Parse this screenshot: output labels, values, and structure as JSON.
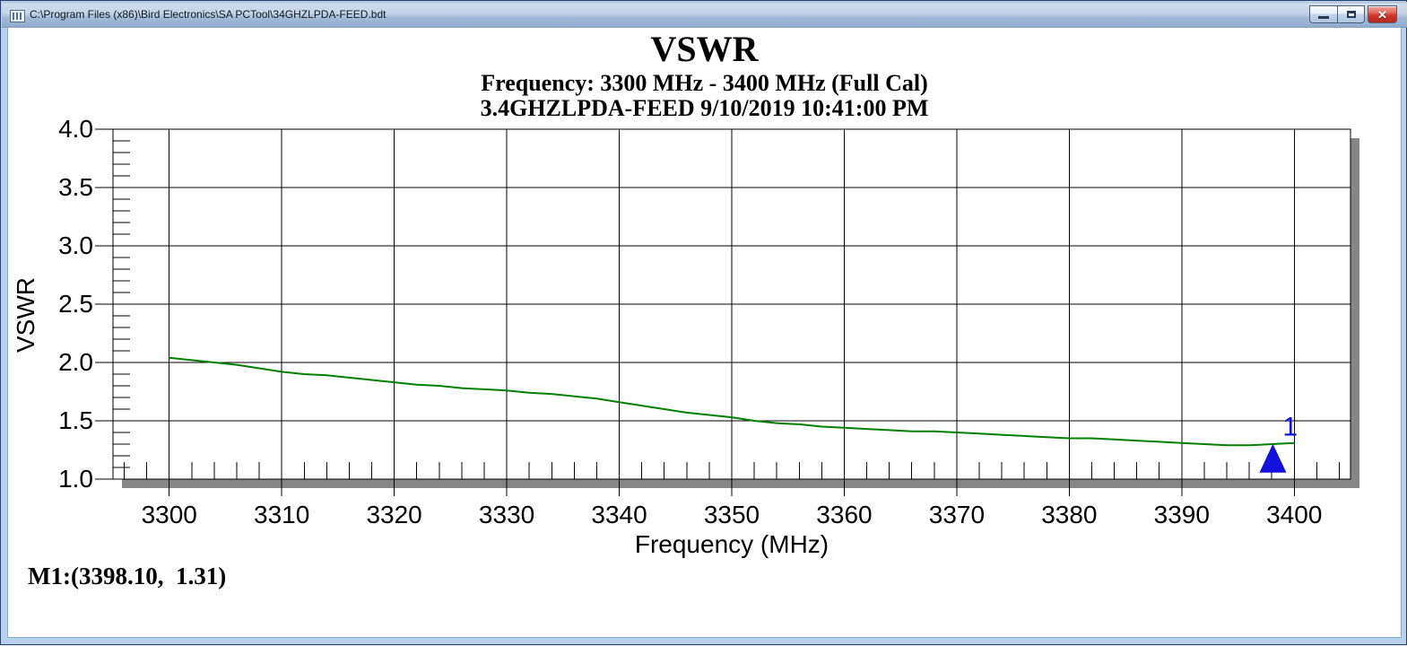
{
  "window": {
    "title": "C:\\Program Files (x86)\\Bird Electronics\\SA PCTool\\34GHZLPDA-FEED.bdt",
    "icons": {
      "document_icon": "mini-chart-grid",
      "minimize_icon": "—",
      "restore_icon": "▢",
      "close_icon": "✕"
    }
  },
  "chart": {
    "title": "VSWR",
    "subtitle1": "Frequency: 3300 MHz - 3400 MHz (Full Cal)",
    "subtitle2": "3.4GHZLPDA-FEED 9/10/2019 10:41:00 PM",
    "xlabel": "Frequency (MHz)",
    "ylabel": "VSWR",
    "marker_readout": "M1:(3398.10,  1.31)"
  },
  "chart_data": {
    "type": "line",
    "title": "VSWR",
    "xlabel": "Frequency (MHz)",
    "ylabel": "VSWR",
    "xlim": [
      3295,
      3405
    ],
    "ylim": [
      1.0,
      4.0
    ],
    "x_major_ticks": [
      3300,
      3310,
      3320,
      3330,
      3340,
      3350,
      3360,
      3370,
      3380,
      3390,
      3400
    ],
    "y_major_ticks": [
      1.0,
      1.5,
      2.0,
      2.5,
      3.0,
      3.5,
      4.0
    ],
    "x_minor_step": 2,
    "y_minor_step": 0.1,
    "grid": true,
    "series": [
      {
        "name": "VSWR trace",
        "color": "#008000",
        "points": [
          [
            3300,
            2.04
          ],
          [
            3302,
            2.02
          ],
          [
            3304,
            2.0
          ],
          [
            3306,
            1.98
          ],
          [
            3308,
            1.95
          ],
          [
            3310,
            1.92
          ],
          [
            3312,
            1.9
          ],
          [
            3314,
            1.89
          ],
          [
            3316,
            1.87
          ],
          [
            3318,
            1.85
          ],
          [
            3320,
            1.83
          ],
          [
            3322,
            1.81
          ],
          [
            3324,
            1.8
          ],
          [
            3326,
            1.78
          ],
          [
            3328,
            1.77
          ],
          [
            3330,
            1.76
          ],
          [
            3332,
            1.74
          ],
          [
            3334,
            1.73
          ],
          [
            3336,
            1.71
          ],
          [
            3338,
            1.69
          ],
          [
            3340,
            1.66
          ],
          [
            3342,
            1.63
          ],
          [
            3344,
            1.6
          ],
          [
            3346,
            1.57
          ],
          [
            3348,
            1.55
          ],
          [
            3350,
            1.53
          ],
          [
            3352,
            1.5
          ],
          [
            3354,
            1.48
          ],
          [
            3356,
            1.47
          ],
          [
            3358,
            1.45
          ],
          [
            3360,
            1.44
          ],
          [
            3362,
            1.43
          ],
          [
            3364,
            1.42
          ],
          [
            3366,
            1.41
          ],
          [
            3368,
            1.41
          ],
          [
            3370,
            1.4
          ],
          [
            3372,
            1.39
          ],
          [
            3374,
            1.38
          ],
          [
            3376,
            1.37
          ],
          [
            3378,
            1.36
          ],
          [
            3380,
            1.35
          ],
          [
            3382,
            1.35
          ],
          [
            3384,
            1.34
          ],
          [
            3386,
            1.33
          ],
          [
            3388,
            1.32
          ],
          [
            3390,
            1.31
          ],
          [
            3392,
            1.3
          ],
          [
            3394,
            1.29
          ],
          [
            3396,
            1.29
          ],
          [
            3398,
            1.3
          ],
          [
            3400,
            1.31
          ]
        ]
      }
    ],
    "marker": {
      "label": "1",
      "x": 3398.1,
      "y": 1.31,
      "color": "#1212dc"
    }
  },
  "colors": {
    "trace_green": "#008000",
    "marker_blue": "#1212dc",
    "grid_black": "#000000",
    "plot_shadow_gray": "#868686",
    "titlebar_blue": "#a9c1dd",
    "window_border_blue": "#b9d1ec",
    "close_button_red": "#cb3a2c"
  }
}
